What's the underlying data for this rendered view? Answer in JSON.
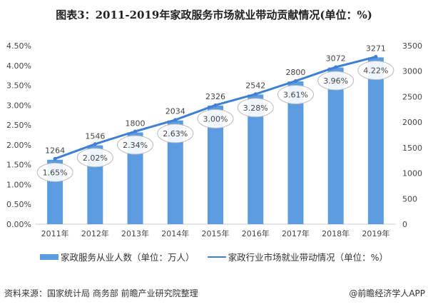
{
  "chart_data": {
    "type": "bar+line",
    "title": "图表3：2011-2019年家政服务市场就业带动贡献情况(单位：%)",
    "categories": [
      "2011年",
      "2012年",
      "2013年",
      "2014年",
      "2015年",
      "2016年",
      "2017年",
      "2018年",
      "2019年"
    ],
    "series": [
      {
        "name": "家政服务从业人数（单位：万人）",
        "type": "bar",
        "axis": "right",
        "values": [
          1264,
          1546,
          1800,
          2034,
          2326,
          2542,
          2800,
          3072,
          3271
        ],
        "labels": [
          "1264",
          "1546",
          "1800",
          "2034",
          "2326",
          "2542",
          "2800",
          "3072",
          "3271"
        ]
      },
      {
        "name": "家政行业市场就业带动情况（单位：%）",
        "type": "line",
        "axis": "left",
        "values": [
          1.65,
          2.02,
          2.34,
          2.63,
          3.0,
          3.28,
          3.61,
          3.96,
          4.22
        ],
        "labels": [
          "1.65%",
          "2.02%",
          "2.34%",
          "2.63%",
          "3.00%",
          "3.28%",
          "3.61%",
          "3.96%",
          "4.22%"
        ]
      }
    ],
    "left_axis": {
      "range": [
        0,
        4.5
      ],
      "ticks": [
        "0.00%",
        "0.50%",
        "1.00%",
        "1.50%",
        "2.00%",
        "2.50%",
        "3.00%",
        "3.50%",
        "4.00%",
        "4.50%"
      ]
    },
    "right_axis": {
      "range": [
        0,
        3500
      ],
      "ticks": [
        "0",
        "500",
        "1000",
        "1500",
        "2000",
        "2500",
        "3000",
        "3500"
      ]
    },
    "grid": false,
    "legend": "bottom",
    "colors": {
      "bar": "#5b9be0",
      "line": "#3f7fd6"
    }
  },
  "footer": {
    "source": "资料来源：国家统计局 商务部 前瞻产业研究院整理",
    "credit": "@前瞻经济学人APP"
  }
}
